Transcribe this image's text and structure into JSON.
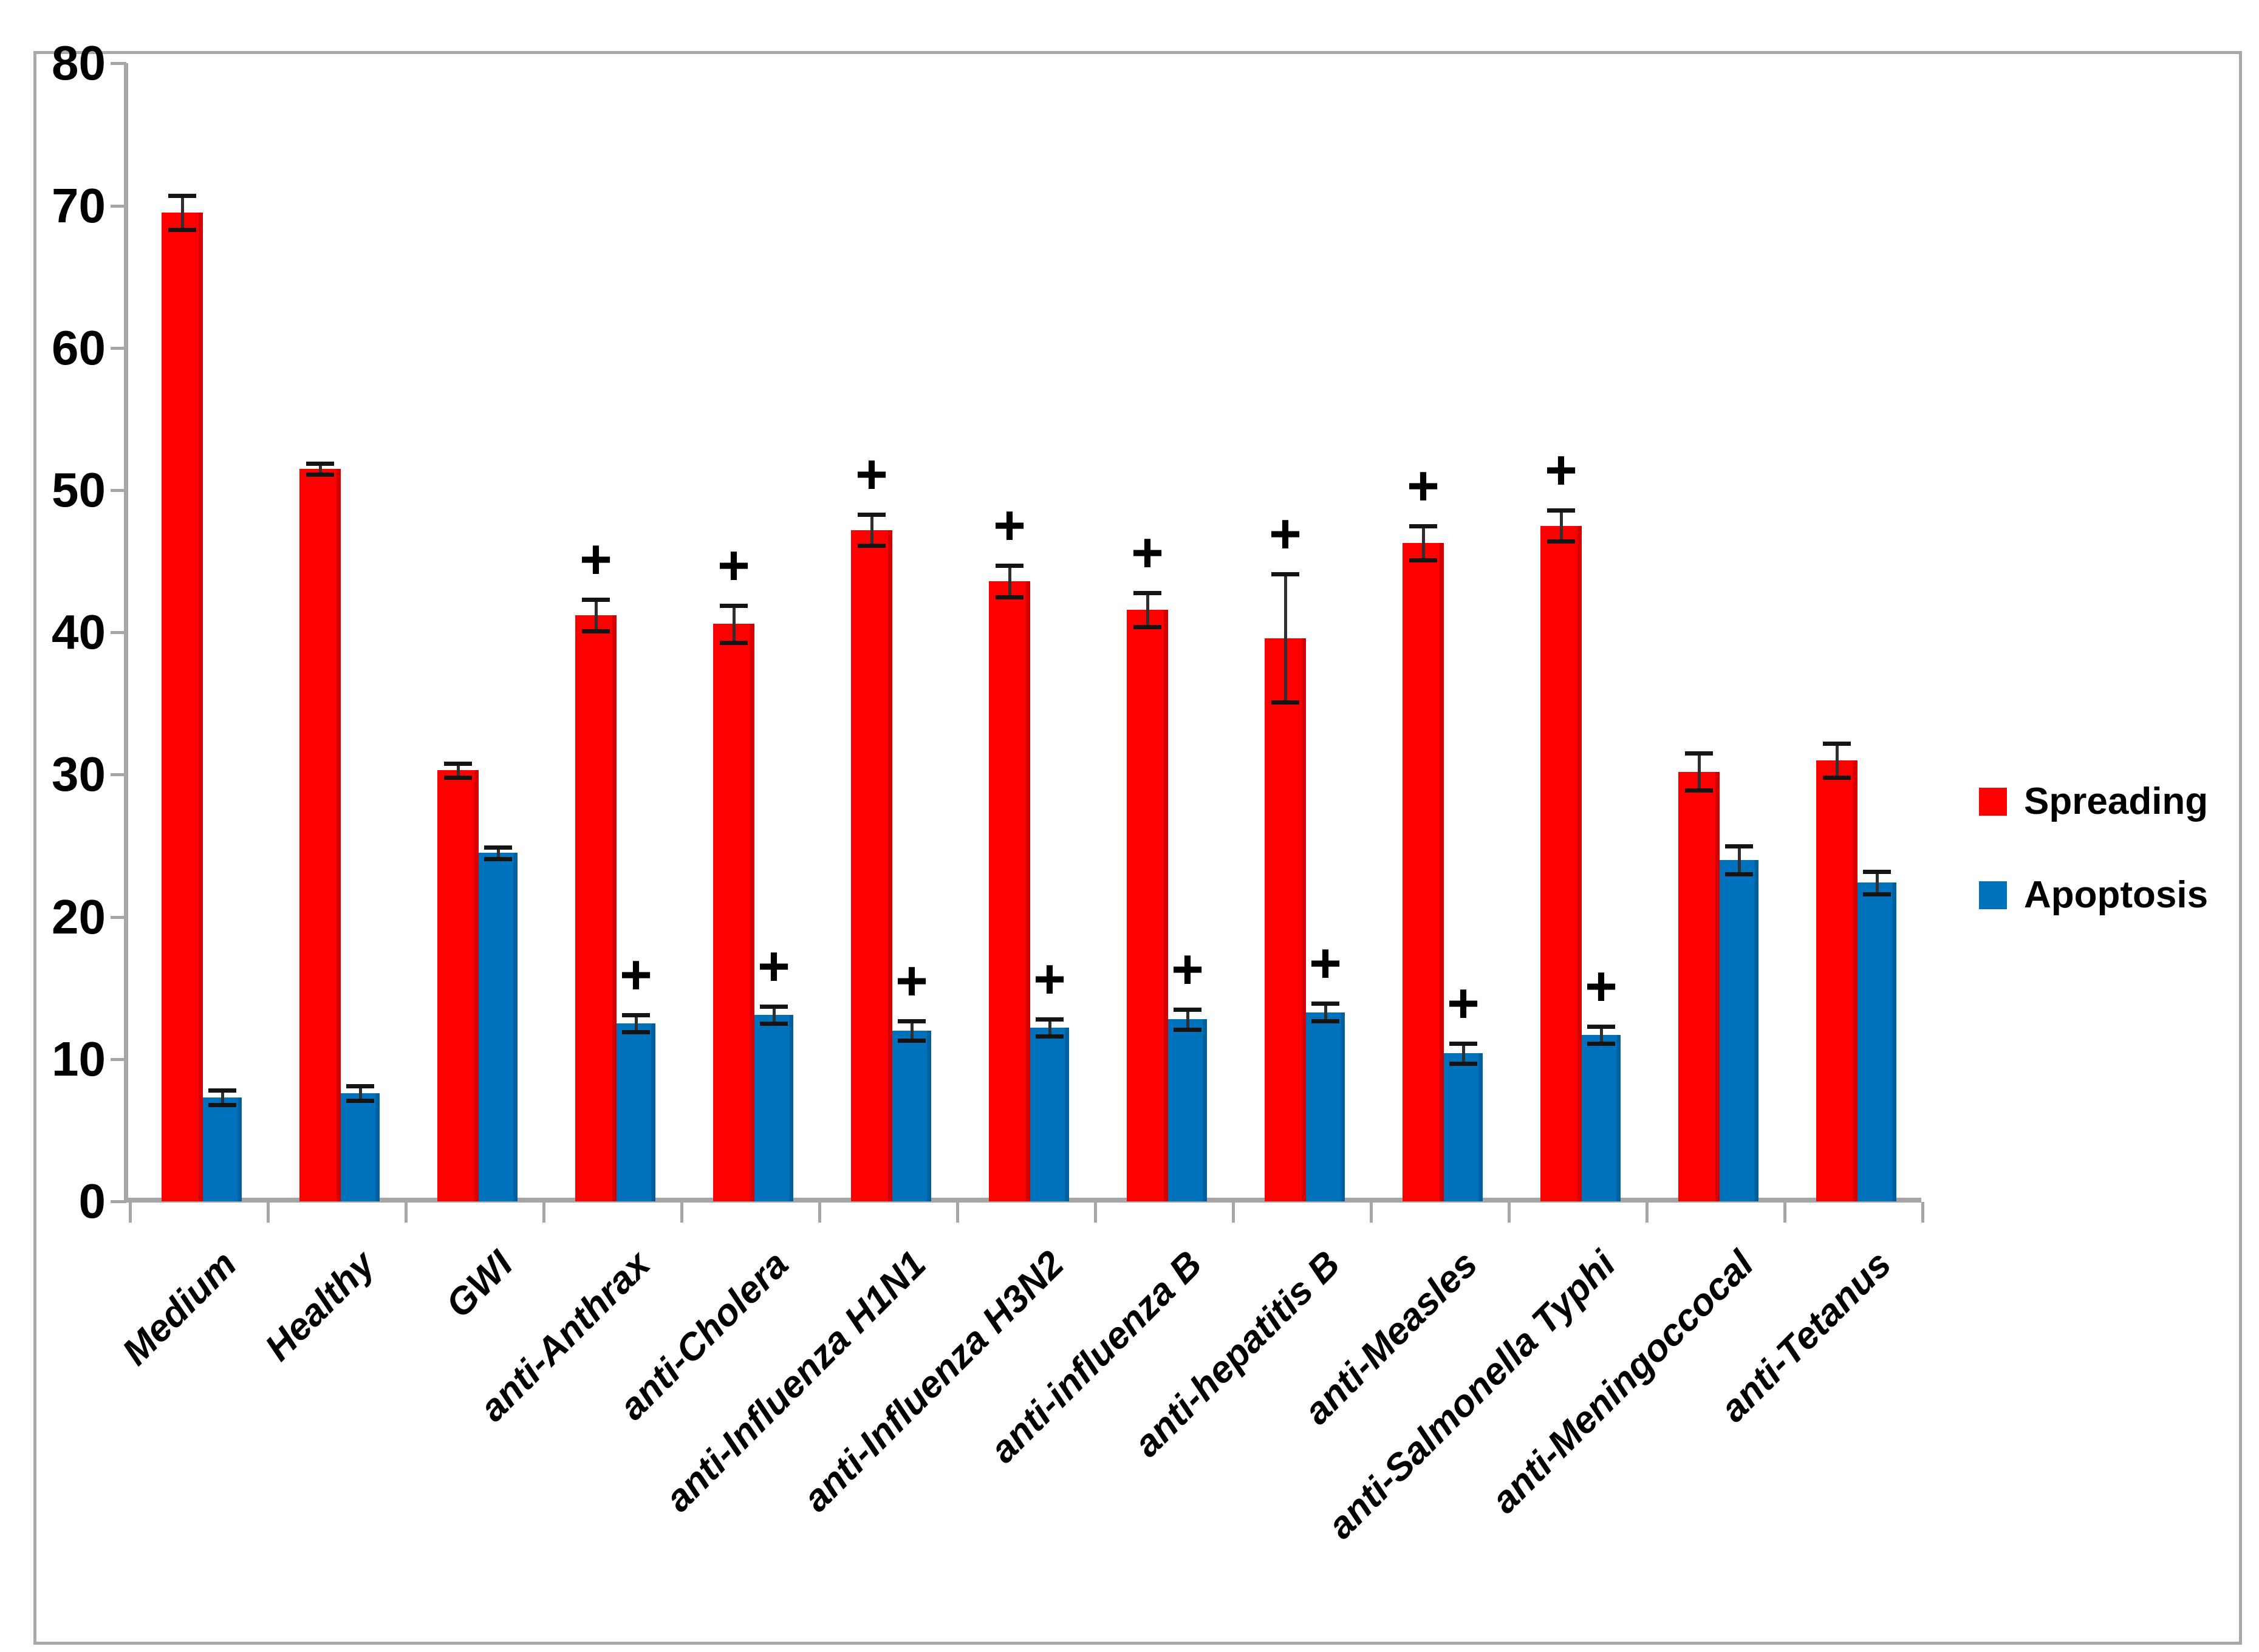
{
  "chart_data": {
    "type": "bar",
    "title": "",
    "xlabel": "",
    "ylabel": "",
    "ylim": [
      0,
      80
    ],
    "yticks": [
      0,
      10,
      20,
      30,
      40,
      50,
      60,
      70,
      80
    ],
    "grid": false,
    "legend_position": "right",
    "annotation_symbol": "+",
    "axis_color": "#a6a6a6",
    "categories": [
      "Medium",
      "Healthy",
      "GWI",
      "anti-Anthrax",
      "anti-Cholera",
      "anti-Influenza H1N1",
      "anti-Influenza H3N2",
      "anti-influenza B",
      "anti-hepatitis B",
      "anti-Measles",
      "anti-Salmonella Typhi",
      "anti-Meningoccocal",
      "anti-Tetanus"
    ],
    "series": [
      {
        "name": "Spreading",
        "color": "#fe0000",
        "edge_color": "#d40000",
        "values": [
          69.5,
          51.5,
          30.3,
          41.2,
          40.6,
          47.2,
          43.6,
          41.6,
          39.6,
          46.3,
          47.5,
          30.2,
          31.0
        ],
        "errors": [
          1.2,
          0.4,
          0.5,
          1.1,
          1.3,
          1.1,
          1.1,
          1.2,
          4.5,
          1.2,
          1.1,
          1.3,
          1.2
        ],
        "plus_annotation": [
          false,
          false,
          false,
          true,
          true,
          true,
          true,
          true,
          true,
          true,
          true,
          false,
          false
        ]
      },
      {
        "name": "Apoptosis",
        "color": "#0072bc",
        "edge_color": "#00609e",
        "values": [
          7.3,
          7.6,
          24.5,
          12.5,
          13.1,
          12.0,
          12.2,
          12.8,
          13.3,
          10.4,
          11.7,
          24.0,
          22.4
        ],
        "errors": [
          0.5,
          0.5,
          0.4,
          0.6,
          0.6,
          0.7,
          0.6,
          0.7,
          0.6,
          0.7,
          0.6,
          1.0,
          0.8
        ],
        "plus_annotation": [
          false,
          false,
          false,
          true,
          true,
          true,
          true,
          true,
          true,
          true,
          true,
          false,
          false
        ]
      }
    ]
  }
}
